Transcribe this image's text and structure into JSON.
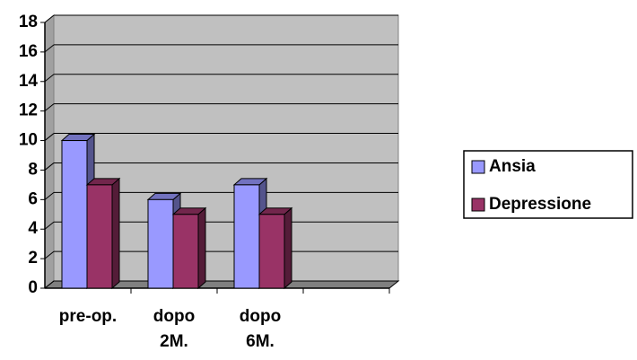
{
  "chart_data": {
    "type": "bar3d",
    "categories": [
      "pre-op.",
      "dopo 2M.",
      "dopo 6M.",
      null
    ],
    "series": [
      {
        "name": "Ansia",
        "color": "#9999ff",
        "values": [
          10,
          6,
          7,
          null
        ]
      },
      {
        "name": "Depressione",
        "color": "#993366",
        "values": [
          7,
          5,
          5,
          null
        ]
      }
    ],
    "ylim": [
      0,
      18
    ],
    "yticks": [
      0,
      2,
      4,
      6,
      8,
      10,
      12,
      14,
      16,
      18
    ],
    "grid": true,
    "legend": "right"
  }
}
